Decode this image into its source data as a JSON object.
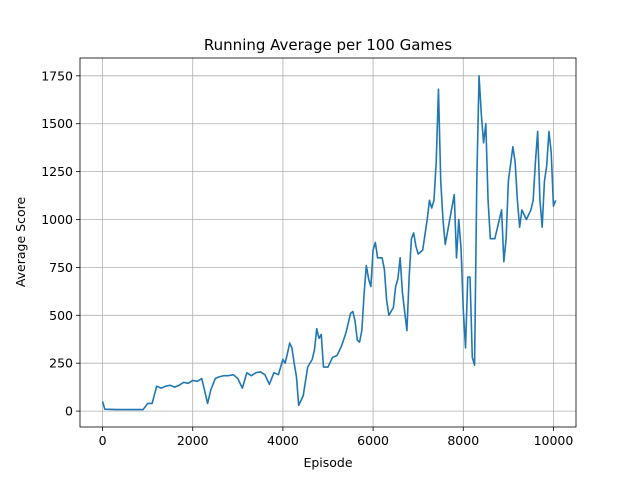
{
  "chart_data": {
    "type": "line",
    "title": "Running Average per 100 Games",
    "xlabel": "Episode",
    "ylabel": "Average Score",
    "color": "#1f77b4",
    "grid": true,
    "xlim": [
      -500,
      10500
    ],
    "ylim": [
      -83,
      1843
    ],
    "xticks": [
      0,
      2000,
      4000,
      6000,
      8000,
      10000
    ],
    "yticks": [
      0,
      250,
      500,
      750,
      1000,
      1250,
      1500,
      1750
    ],
    "x": [
      0,
      50,
      300,
      600,
      900,
      1000,
      1100,
      1200,
      1300,
      1400,
      1500,
      1600,
      1700,
      1800,
      1900,
      2000,
      2100,
      2200,
      2250,
      2330,
      2400,
      2500,
      2600,
      2700,
      2800,
      2900,
      3000,
      3100,
      3200,
      3300,
      3400,
      3500,
      3600,
      3700,
      3800,
      3900,
      4000,
      4050,
      4100,
      4150,
      4200,
      4250,
      4300,
      4350,
      4450,
      4550,
      4650,
      4700,
      4750,
      4800,
      4850,
      4900,
      5000,
      5100,
      5200,
      5300,
      5400,
      5500,
      5550,
      5600,
      5650,
      5700,
      5750,
      5800,
      5850,
      5900,
      5950,
      6000,
      6050,
      6100,
      6200,
      6250,
      6300,
      6350,
      6450,
      6500,
      6550,
      6600,
      6650,
      6700,
      6750,
      6800,
      6850,
      6900,
      6950,
      7000,
      7100,
      7200,
      7250,
      7300,
      7350,
      7400,
      7450,
      7500,
      7550,
      7600,
      7700,
      7800,
      7850,
      7900,
      7950,
      8000,
      8050,
      8100,
      8150,
      8200,
      8250,
      8300,
      8350,
      8400,
      8450,
      8500,
      8550,
      8600,
      8700,
      8800,
      8850,
      8900,
      8950,
      9000,
      9100,
      9150,
      9200,
      9250,
      9300,
      9400,
      9500,
      9550,
      9600,
      9650,
      9700,
      9750,
      9800,
      9850,
      9900,
      9950,
      10000,
      10050
    ],
    "values": [
      50,
      10,
      8,
      8,
      8,
      40,
      40,
      130,
      120,
      130,
      135,
      125,
      135,
      150,
      145,
      160,
      155,
      170,
      120,
      40,
      110,
      170,
      180,
      185,
      185,
      190,
      170,
      120,
      200,
      185,
      200,
      205,
      190,
      140,
      200,
      190,
      270,
      250,
      300,
      355,
      330,
      250,
      180,
      30,
      80,
      230,
      270,
      320,
      430,
      380,
      400,
      230,
      230,
      280,
      290,
      340,
      410,
      510,
      520,
      470,
      370,
      360,
      420,
      610,
      760,
      690,
      650,
      840,
      880,
      800,
      800,
      740,
      580,
      500,
      540,
      650,
      690,
      800,
      620,
      520,
      420,
      700,
      900,
      930,
      860,
      820,
      840,
      1000,
      1100,
      1060,
      1100,
      1300,
      1680,
      1200,
      1000,
      870,
      1000,
      1130,
      800,
      1000,
      850,
      530,
      330,
      700,
      700,
      280,
      240,
      1200,
      1750,
      1550,
      1400,
      1500,
      1100,
      900,
      900,
      1000,
      1050,
      780,
      900,
      1200,
      1380,
      1300,
      1100,
      960,
      1050,
      1000,
      1050,
      1100,
      1300,
      1460,
      1100,
      960,
      1200,
      1280,
      1460,
      1350,
      1070,
      1100
    ]
  }
}
